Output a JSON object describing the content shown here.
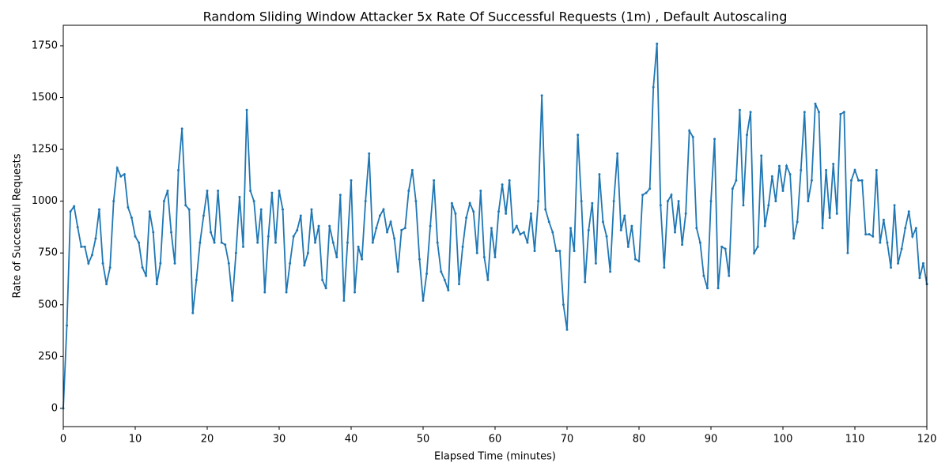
{
  "chart_data": {
    "type": "line",
    "title": "Random Sliding Window Attacker 5x Rate Of Successful Requests (1m) , Default Autoscaling",
    "x_label": "Elapsed Time (minutes)",
    "y_label": "Rate of Successful Requests",
    "xlim": [
      0,
      120
    ],
    "ylim": [
      -88,
      1849
    ],
    "xticks": [
      0,
      10,
      20,
      30,
      40,
      50,
      60,
      70,
      80,
      90,
      100,
      110,
      120
    ],
    "yticks": [
      0,
      250,
      500,
      750,
      1000,
      1250,
      1500,
      1750
    ],
    "x": [
      0,
      0.5,
      1,
      1.5,
      2,
      2.5,
      3,
      3.5,
      4,
      4.5,
      5,
      5.5,
      6,
      6.5,
      7,
      7.5,
      8,
      8.5,
      9,
      9.5,
      10,
      10.5,
      11,
      11.5,
      12,
      12.5,
      13,
      13.5,
      14,
      14.5,
      15,
      15.5,
      16,
      16.5,
      17,
      17.5,
      18,
      18.5,
      19,
      19.5,
      20,
      20.5,
      21,
      21.5,
      22,
      22.5,
      23,
      23.5,
      24,
      24.5,
      25,
      25.5,
      26,
      26.5,
      27,
      27.5,
      28,
      28.5,
      29,
      29.5,
      30,
      30.5,
      31,
      31.5,
      32,
      32.5,
      33,
      33.5,
      34,
      34.5,
      35,
      35.5,
      36,
      36.5,
      37,
      37.5,
      38,
      38.5,
      39,
      39.5,
      40,
      40.5,
      41,
      41.5,
      42,
      42.5,
      43,
      43.5,
      44,
      44.5,
      45,
      45.5,
      46,
      46.5,
      47,
      47.5,
      48,
      48.5,
      49,
      49.5,
      50,
      50.5,
      51,
      51.5,
      52,
      52.5,
      53,
      53.5,
      54,
      54.5,
      55,
      55.5,
      56,
      56.5,
      57,
      57.5,
      58,
      58.5,
      59,
      59.5,
      60,
      60.5,
      61,
      61.5,
      62,
      62.5,
      63,
      63.5,
      64,
      64.5,
      65,
      65.5,
      66,
      66.5,
      67,
      67.5,
      68,
      68.5,
      69,
      69.5,
      70,
      70.5,
      71,
      71.5,
      72,
      72.5,
      73,
      73.5,
      74,
      74.5,
      75,
      75.5,
      76,
      76.5,
      77,
      77.5,
      78,
      78.5,
      79,
      79.5,
      80,
      80.5,
      81,
      81.5,
      82,
      82.5,
      83,
      83.5,
      84,
      84.5,
      85,
      85.5,
      86,
      86.5,
      87,
      87.5,
      88,
      88.5,
      89,
      89.5,
      90,
      90.5,
      91,
      91.5,
      92,
      92.5,
      93,
      93.5,
      94,
      94.5,
      95,
      95.5,
      96,
      96.5,
      97,
      97.5,
      98,
      98.5,
      99,
      99.5,
      100,
      100.5,
      101,
      101.5,
      102,
      102.5,
      103,
      103.5,
      104,
      104.5,
      105,
      105.5,
      106,
      106.5,
      107,
      107.5,
      108,
      108.5,
      109,
      109.5,
      110,
      110.5,
      111,
      111.5,
      112,
      112.5,
      113,
      113.5,
      114,
      114.5,
      115,
      115.5,
      116,
      116.5,
      117,
      117.5,
      118,
      118.5,
      119,
      119.5,
      120
    ],
    "series": [
      {
        "color": "#1f77b4",
        "values": [
          0,
          400,
          950,
          975,
          875,
          780,
          780,
          700,
          740,
          820,
          960,
          700,
          600,
          680,
          1000,
          1160,
          1120,
          1130,
          970,
          920,
          830,
          800,
          680,
          640,
          950,
          850,
          600,
          700,
          1000,
          1050,
          850,
          700,
          1150,
          1350,
          980,
          960,
          460,
          620,
          800,
          930,
          1050,
          850,
          800,
          1050,
          800,
          790,
          700,
          520,
          750,
          1020,
          780,
          1440,
          1050,
          1000,
          800,
          960,
          560,
          830,
          1040,
          800,
          1050,
          960,
          560,
          700,
          830,
          860,
          930,
          690,
          750,
          960,
          800,
          880,
          620,
          580,
          880,
          800,
          730,
          1030,
          520,
          800,
          1100,
          560,
          780,
          720,
          1000,
          1230,
          800,
          870,
          930,
          960,
          850,
          900,
          820,
          660,
          860,
          870,
          1050,
          1150,
          1000,
          720,
          520,
          650,
          880,
          1100,
          800,
          660,
          620,
          570,
          990,
          940,
          600,
          780,
          920,
          990,
          950,
          750,
          1050,
          730,
          620,
          870,
          730,
          950,
          1080,
          940,
          1100,
          850,
          880,
          840,
          850,
          800,
          940,
          760,
          1000,
          1510,
          960,
          900,
          850,
          760,
          760,
          500,
          380,
          870,
          760,
          1320,
          1000,
          610,
          860,
          990,
          700,
          1130,
          900,
          830,
          660,
          1000,
          1230,
          860,
          930,
          780,
          880,
          720,
          710,
          1030,
          1040,
          1060,
          1550,
          1760,
          980,
          680,
          1000,
          1030,
          850,
          1000,
          790,
          940,
          1340,
          1310,
          870,
          800,
          640,
          580,
          1000,
          1300,
          580,
          780,
          770,
          640,
          1060,
          1100,
          1440,
          980,
          1320,
          1430,
          750,
          780,
          1220,
          880,
          980,
          1120,
          1000,
          1170,
          1050,
          1170,
          1130,
          820,
          900,
          1150,
          1430,
          1000,
          1100,
          1470,
          1430,
          870,
          1150,
          920,
          1180,
          940,
          1420,
          1430,
          750,
          1100,
          1150,
          1100,
          1100,
          840,
          840,
          830,
          1150,
          800,
          910,
          800,
          680,
          980,
          700,
          770,
          870,
          950,
          830,
          870,
          630,
          700,
          600
        ]
      }
    ]
  }
}
